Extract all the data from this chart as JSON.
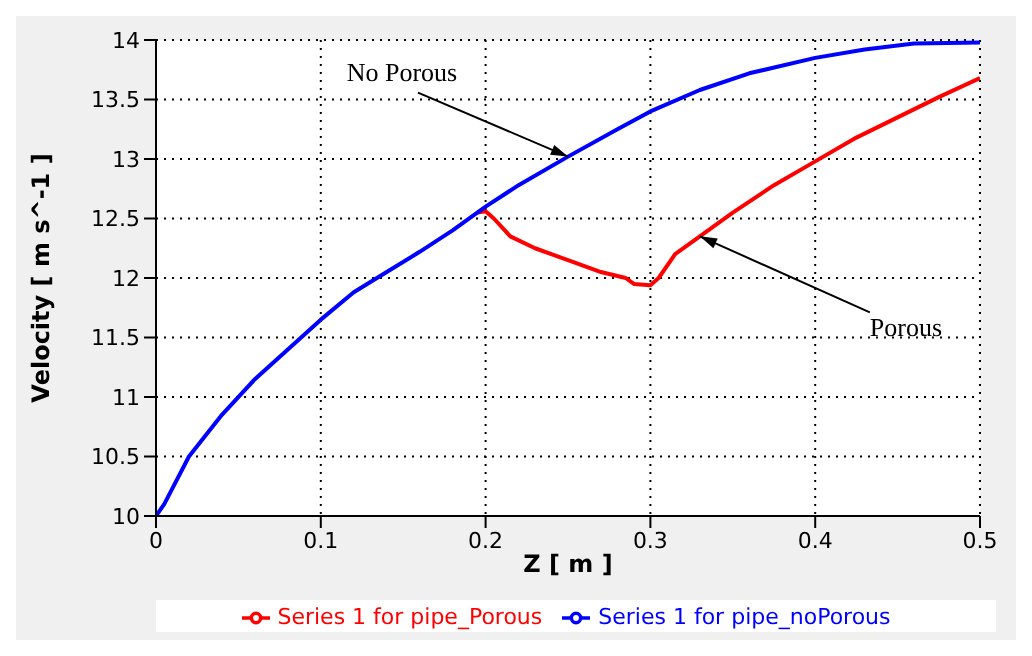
{
  "chart_data": {
    "type": "line",
    "xlabel": "Z [ m ]",
    "ylabel": "Velocity [ m s^-1 ]",
    "xlim": [
      0,
      0.5
    ],
    "xticks": [
      0,
      0.1,
      0.2,
      0.3,
      0.4,
      0.5
    ],
    "ylim": [
      10,
      14
    ],
    "yticks": [
      10,
      10.5,
      11,
      11.5,
      12,
      12.5,
      13,
      13.5,
      14
    ],
    "grid": true,
    "legend": "bottom",
    "marker": "none",
    "line_style": "solid",
    "series": [
      {
        "name": "Series 1 for pipe_Porous",
        "color": "#ff0000",
        "x": [
          0.195,
          0.2,
          0.205,
          0.215,
          0.23,
          0.25,
          0.27,
          0.285,
          0.29,
          0.3,
          0.305,
          0.315,
          0.33,
          0.35,
          0.375,
          0.4,
          0.425,
          0.45,
          0.475,
          0.5
        ],
        "values": [
          12.55,
          12.56,
          12.5,
          12.35,
          12.25,
          12.15,
          12.05,
          12.0,
          11.95,
          11.94,
          12.0,
          12.2,
          12.35,
          12.55,
          12.78,
          12.98,
          13.18,
          13.35,
          13.52,
          13.68
        ]
      },
      {
        "name": "Series 1 for pipe_noPorous",
        "color": "#0000ff",
        "x": [
          0,
          0.005,
          0.02,
          0.04,
          0.06,
          0.08,
          0.1,
          0.12,
          0.14,
          0.16,
          0.18,
          0.2,
          0.22,
          0.25,
          0.28,
          0.3,
          0.33,
          0.36,
          0.4,
          0.43,
          0.46,
          0.5
        ],
        "values": [
          10,
          10.1,
          10.5,
          10.85,
          11.15,
          11.4,
          11.65,
          11.88,
          12.05,
          12.22,
          12.4,
          12.6,
          12.78,
          13.02,
          13.25,
          13.4,
          13.58,
          13.72,
          13.85,
          13.92,
          13.97,
          13.98
        ]
      }
    ],
    "annotations": [
      {
        "text": "No Porous",
        "x": 0.25,
        "y": 13.02
      },
      {
        "text": "Porous",
        "x": 0.33,
        "y": 12.35
      }
    ]
  }
}
